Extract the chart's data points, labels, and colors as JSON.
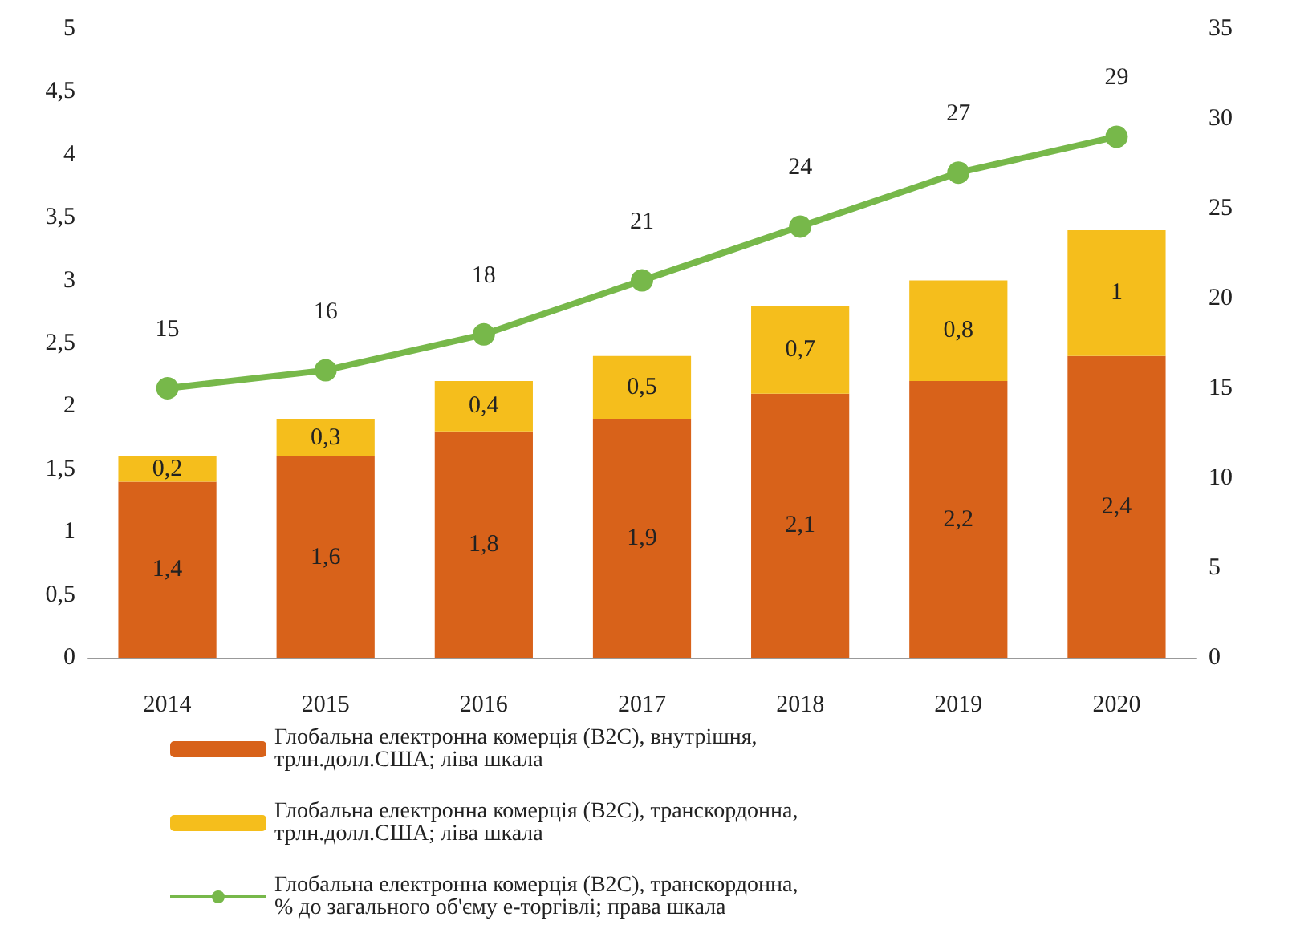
{
  "chart_data": {
    "type": "bar",
    "stacked": true,
    "categories": [
      "2014",
      "2015",
      "2016",
      "2017",
      "2018",
      "2019",
      "2020"
    ],
    "series": [
      {
        "name": "Глобальна електронна комерція (B2C), внутрішня, трлн.долл.США; ліва шкала",
        "color": "#d8621a",
        "values": [
          1.4,
          1.6,
          1.8,
          1.9,
          2.1,
          2.2,
          2.4
        ],
        "value_labels": [
          "1,4",
          "1,6",
          "1,8",
          "1,9",
          "2,1",
          "2,2",
          "2,4"
        ]
      },
      {
        "name": "Глобальна електронна комерція (B2C), транскордонна, трлн.долл.США; ліва шкала",
        "color": "#f5be1c",
        "values": [
          0.2,
          0.3,
          0.4,
          0.5,
          0.7,
          0.8,
          1
        ],
        "value_labels": [
          "0,2",
          "0,3",
          "0,4",
          "0,5",
          "0,7",
          "0,8",
          "1"
        ]
      },
      {
        "name": "Глобальна електронна комерція (B2C), транскордонна, % до загального об'єму е-торгівлі; права шкала",
        "type": "line",
        "axis": "y2",
        "color": "#77b84a",
        "marker": "circle",
        "values": [
          15,
          16,
          18,
          21,
          24,
          27,
          29
        ],
        "value_labels": [
          "15",
          "16",
          "18",
          "21",
          "24",
          "27",
          "29"
        ]
      }
    ],
    "ylim": [
      0,
      5
    ],
    "yticks": [
      0,
      {
        "value": 0.5,
        "label": "0,5"
      },
      1,
      {
        "value": 1.5,
        "label": "1,5"
      },
      2,
      {
        "value": 2.5,
        "label": "2,5"
      },
      3,
      {
        "value": 3.5,
        "label": "3,5"
      },
      4,
      {
        "value": 4.5,
        "label": "4,5"
      },
      5
    ],
    "y2lim": [
      0,
      35
    ],
    "y2ticks": [
      0,
      5,
      10,
      15,
      20,
      25,
      30,
      35
    ],
    "grid": false,
    "legend": "bottom"
  }
}
